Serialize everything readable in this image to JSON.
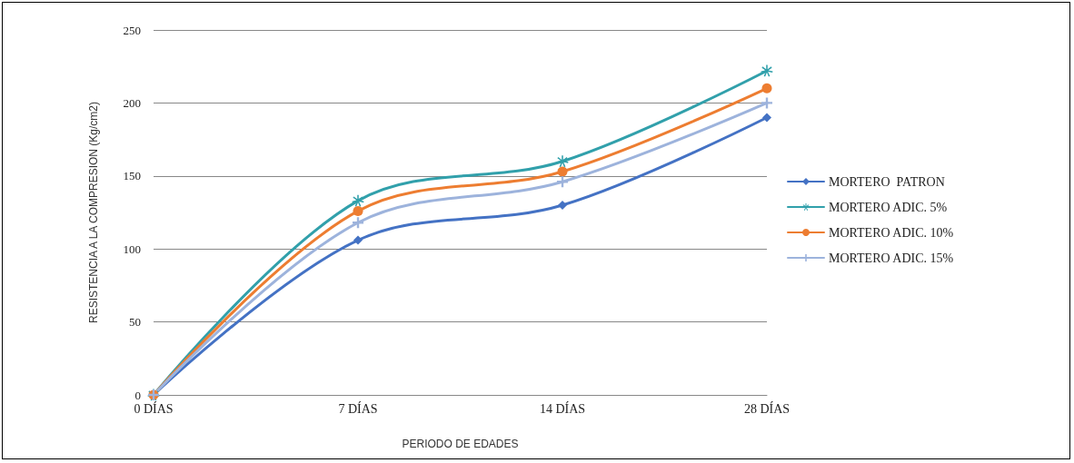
{
  "chart_data": {
    "type": "line",
    "xlabel": "PERIODO DE EDADES",
    "ylabel": "RESISTENCIA A LA COMPRESION (Kg/cm2)",
    "categories": [
      "0 DÍAS",
      "7 DÍAS",
      "14 DÍAS",
      "28 DÍAS"
    ],
    "series": [
      {
        "name": "MORTERO  PATRON",
        "color": "#4472c4",
        "marker": "diamond",
        "values": [
          0,
          106,
          130,
          190
        ]
      },
      {
        "name": "MORTERO ADIC. 5%",
        "color": "#31a0ab",
        "marker": "star",
        "values": [
          0,
          133,
          160,
          222
        ]
      },
      {
        "name": "MORTERO ADIC. 10%",
        "color": "#ed7d31",
        "marker": "circle",
        "values": [
          0,
          126,
          153,
          210
        ]
      },
      {
        "name": "MORTERO ADIC. 15%",
        "color": "#9db3dc",
        "marker": "cross",
        "values": [
          0,
          118,
          146,
          200
        ]
      }
    ],
    "ylim": [
      0,
      250
    ],
    "yticks": [
      0,
      50,
      100,
      150,
      200,
      250
    ],
    "grid": "y",
    "legend": "right",
    "line_style": "solid"
  }
}
